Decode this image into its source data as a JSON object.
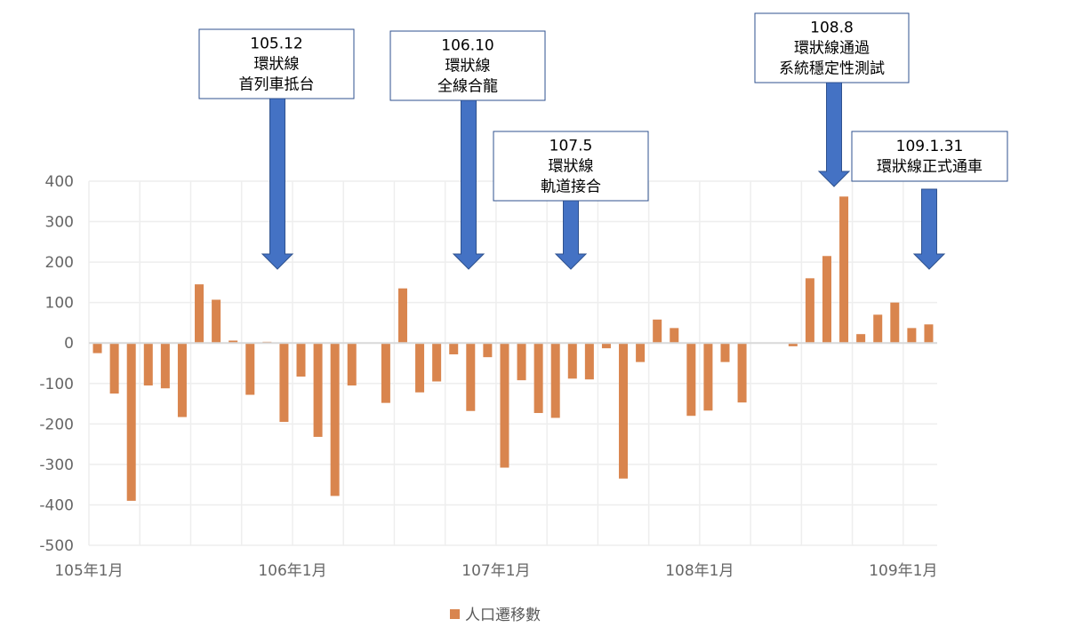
{
  "chart_data": {
    "type": "bar",
    "ylim": [
      -500,
      400
    ],
    "yticks": [
      400,
      300,
      200,
      100,
      0,
      -100,
      -200,
      -300,
      -400,
      -500
    ],
    "x_tick_labels": [
      "105年1月",
      "106年1月",
      "107年1月",
      "108年1月",
      "109年1月"
    ],
    "grid": true,
    "legend_position": "bottom",
    "series": [
      {
        "name": "人口遷移數",
        "color": "#d9854e",
        "values": [
          -25,
          -125,
          -390,
          -105,
          -112,
          -183,
          145,
          107,
          6,
          -128,
          3,
          -195,
          -83,
          -232,
          -378,
          -105,
          null,
          -148,
          135,
          -122,
          -95,
          -28,
          -168,
          -35,
          -308,
          -92,
          -173,
          -185,
          -88,
          -90,
          -13,
          -335,
          -47,
          58,
          37,
          -180,
          -167,
          -47,
          -147,
          null,
          null,
          -8,
          160,
          215,
          362,
          22,
          70,
          100,
          37,
          46
        ]
      }
    ],
    "annotations": [
      {
        "lines": [
          "105.12",
          "環狀線",
          "首列車抵台"
        ]
      },
      {
        "lines": [
          "106.10",
          "環狀線",
          "全線合龍"
        ]
      },
      {
        "lines": [
          "107.5",
          "環狀線",
          "軌道接合"
        ]
      },
      {
        "lines": [
          "108.8",
          "環狀線通過",
          "系統穩定性測試"
        ]
      },
      {
        "lines": [
          "109.1.31",
          "環狀線正式通車"
        ]
      }
    ]
  }
}
